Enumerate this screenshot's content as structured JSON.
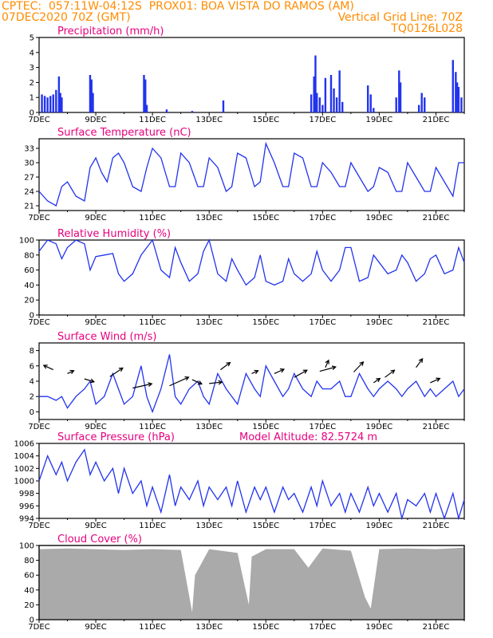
{
  "header": {
    "line1_left": "CPTEC:  057:11W-04:12S  PROX01: BOA VISTA DO RAMOS (AM)",
    "line2_left": "07DEC2020 70Z (GMT)",
    "line2_right": "Vertical Grid Line: 70Z",
    "line3_right": "TQ0126L028"
  },
  "colors": {
    "header": "#ff8c00",
    "title": "#e6007e",
    "line": "#2233ee",
    "cloud": "#aaaaaa"
  },
  "x_axis": {
    "labels": [
      "7DEC",
      "9DEC",
      "11DEC",
      "13DEC",
      "15DEC",
      "17DEC",
      "19DEC",
      "21DEC"
    ],
    "start_day": 7,
    "end_day": 22
  },
  "chart_data": [
    {
      "type": "bar",
      "title": "Precipitation (mm/h)",
      "ylim": [
        0,
        5
      ],
      "yticks": [
        "0",
        "1",
        "2",
        "3",
        "4",
        "5"
      ],
      "x": [
        7.1,
        7.2,
        7.3,
        7.4,
        7.5,
        7.6,
        7.7,
        7.75,
        7.8,
        8.8,
        8.85,
        8.9,
        10.7,
        10.75,
        10.8,
        11.5,
        12.4,
        13.5,
        16.6,
        16.7,
        16.75,
        16.8,
        16.9,
        17.0,
        17.1,
        17.3,
        17.4,
        17.5,
        17.6,
        17.7,
        18.6,
        18.7,
        18.8,
        19.6,
        19.7,
        19.75,
        20.4,
        20.5,
        20.6,
        21.6,
        21.7,
        21.75,
        21.8,
        21.9
      ],
      "values": [
        1.2,
        1.1,
        1.0,
        1.1,
        1.2,
        1.5,
        2.4,
        1.3,
        1.0,
        2.5,
        2.2,
        1.3,
        2.5,
        2.2,
        0.5,
        0.2,
        0.1,
        0.8,
        1.2,
        2.4,
        3.8,
        1.3,
        1.0,
        0.5,
        2.3,
        2.5,
        1.6,
        1.0,
        2.8,
        0.7,
        1.8,
        1.2,
        0.3,
        1.0,
        2.8,
        2.0,
        0.5,
        1.3,
        1.0,
        3.5,
        2.7,
        2.0,
        1.7,
        1.0
      ]
    },
    {
      "type": "line",
      "title": "Surface Temperature (nC)",
      "ylim": [
        20,
        35
      ],
      "yticks": [
        "21",
        "24",
        "27",
        "30",
        "33"
      ],
      "x": [
        7.0,
        7.3,
        7.6,
        7.8,
        8.0,
        8.3,
        8.6,
        8.8,
        9.0,
        9.2,
        9.4,
        9.6,
        9.8,
        10.0,
        10.3,
        10.6,
        10.8,
        11.0,
        11.3,
        11.6,
        11.8,
        12.0,
        12.3,
        12.6,
        12.8,
        13.0,
        13.3,
        13.6,
        13.8,
        14.0,
        14.3,
        14.6,
        14.8,
        15.0,
        15.3,
        15.6,
        15.8,
        16.0,
        16.3,
        16.6,
        16.8,
        17.0,
        17.3,
        17.6,
        17.8,
        18.0,
        18.3,
        18.6,
        18.8,
        19.0,
        19.3,
        19.6,
        19.8,
        20.0,
        20.3,
        20.6,
        20.8,
        21.0,
        21.3,
        21.6,
        21.8,
        22.0
      ],
      "values": [
        24,
        22,
        21,
        25,
        26,
        23,
        22,
        29,
        31,
        28,
        26,
        31,
        32,
        30,
        25,
        24,
        29,
        33,
        31,
        25,
        25,
        32,
        30,
        25,
        25,
        31,
        29,
        24,
        25,
        32,
        31,
        25,
        26,
        34,
        30,
        25,
        25,
        32,
        31,
        25,
        25,
        30,
        28,
        25,
        25,
        30,
        27,
        24,
        25,
        29,
        28,
        24,
        24,
        30,
        27,
        24,
        24,
        29,
        26,
        23,
        30,
        30
      ]
    },
    {
      "type": "line",
      "title": "Relative Humidity (%)",
      "ylim": [
        0,
        100
      ],
      "yticks": [
        "0",
        "20",
        "40",
        "60",
        "80",
        "100"
      ],
      "x": [
        7.0,
        7.3,
        7.6,
        7.8,
        8.0,
        8.3,
        8.6,
        8.8,
        9.0,
        9.3,
        9.6,
        9.8,
        10.0,
        10.3,
        10.6,
        10.8,
        11.0,
        11.3,
        11.6,
        11.8,
        12.0,
        12.3,
        12.6,
        12.8,
        13.0,
        13.3,
        13.6,
        13.8,
        14.0,
        14.3,
        14.6,
        14.8,
        15.0,
        15.3,
        15.6,
        15.8,
        16.0,
        16.3,
        16.6,
        16.8,
        17.0,
        17.3,
        17.6,
        17.8,
        18.0,
        18.3,
        18.6,
        18.8,
        19.0,
        19.3,
        19.6,
        19.8,
        20.0,
        20.3,
        20.6,
        20.8,
        21.0,
        21.3,
        21.6,
        21.8,
        22.0
      ],
      "values": [
        85,
        100,
        95,
        75,
        90,
        100,
        95,
        60,
        78,
        80,
        82,
        55,
        45,
        55,
        80,
        90,
        100,
        60,
        50,
        90,
        70,
        45,
        55,
        85,
        100,
        55,
        45,
        75,
        60,
        40,
        50,
        80,
        45,
        40,
        45,
        75,
        55,
        45,
        55,
        85,
        60,
        45,
        60,
        90,
        90,
        45,
        50,
        80,
        70,
        55,
        60,
        80,
        70,
        45,
        55,
        75,
        80,
        55,
        60,
        90,
        70
      ]
    },
    {
      "type": "line",
      "title": "Surface Wind (m/s)",
      "ylim": [
        -1,
        9
      ],
      "yticks": [
        "0",
        "2",
        "4",
        "6",
        "8"
      ],
      "x": [
        7.0,
        7.3,
        7.6,
        7.8,
        8.0,
        8.3,
        8.6,
        8.8,
        9.0,
        9.3,
        9.6,
        9.8,
        10.0,
        10.3,
        10.6,
        10.8,
        11.0,
        11.3,
        11.6,
        11.8,
        12.0,
        12.3,
        12.6,
        12.8,
        13.0,
        13.3,
        13.6,
        13.8,
        14.0,
        14.3,
        14.6,
        14.8,
        15.0,
        15.3,
        15.6,
        15.8,
        16.0,
        16.3,
        16.6,
        16.8,
        17.0,
        17.3,
        17.6,
        17.8,
        18.0,
        18.3,
        18.6,
        18.8,
        19.0,
        19.3,
        19.6,
        19.8,
        20.0,
        20.3,
        20.6,
        20.8,
        21.0,
        21.3,
        21.6,
        21.8,
        22.0
      ],
      "values": [
        2,
        2,
        1.5,
        2,
        0.5,
        2,
        3,
        4,
        1,
        2,
        5,
        3,
        1,
        2,
        6,
        2,
        0,
        3,
        7.5,
        2,
        1,
        3,
        4,
        2,
        1,
        5,
        3,
        2,
        1,
        5,
        3,
        2,
        6,
        4,
        2,
        3,
        5,
        3,
        2,
        4,
        3,
        3,
        4,
        2,
        2,
        5,
        3,
        2,
        3,
        4,
        3,
        2,
        3,
        4,
        2,
        3,
        2,
        3,
        4,
        2,
        3
      ]
    },
    {
      "type": "line",
      "title": "Surface Pressure (hPa)",
      "annotation": "Model Altitude: 82.5724 m",
      "ylim": [
        994,
        1006
      ],
      "yticks": [
        "994",
        "996",
        "998",
        "1000",
        "1002",
        "1004",
        "1006"
      ],
      "x": [
        7.0,
        7.3,
        7.6,
        7.8,
        8.0,
        8.3,
        8.6,
        8.8,
        9.0,
        9.3,
        9.6,
        9.8,
        10.0,
        10.3,
        10.6,
        10.8,
        11.0,
        11.3,
        11.6,
        11.8,
        12.0,
        12.3,
        12.6,
        12.8,
        13.0,
        13.3,
        13.6,
        13.8,
        14.0,
        14.3,
        14.6,
        14.8,
        15.0,
        15.3,
        15.6,
        15.8,
        16.0,
        16.3,
        16.6,
        16.8,
        17.0,
        17.3,
        17.6,
        17.8,
        18.0,
        18.3,
        18.6,
        18.8,
        19.0,
        19.3,
        19.6,
        19.8,
        20.0,
        20.3,
        20.6,
        20.8,
        21.0,
        21.3,
        21.6,
        21.8,
        22.0
      ],
      "values": [
        1000,
        1004,
        1001,
        1003,
        1000,
        1003,
        1005,
        1001,
        1003,
        1000,
        1002,
        998,
        1002,
        998,
        1000,
        996,
        999,
        995,
        1001,
        996,
        999,
        997,
        1000,
        996,
        999,
        997,
        999,
        996,
        1000,
        995,
        999,
        997,
        999,
        995,
        999,
        997,
        998,
        995,
        999,
        996,
        1000,
        996,
        998,
        995,
        998,
        995,
        999,
        996,
        998,
        995,
        998,
        994,
        997,
        996,
        998,
        995,
        998,
        994,
        998,
        994,
        997
      ]
    },
    {
      "type": "bar",
      "title": "Cloud Cover (%)",
      "ylim": [
        0,
        100
      ],
      "yticks": [
        "0",
        "20",
        "40",
        "60",
        "80",
        "100"
      ],
      "x": [
        7.0,
        8.0,
        9.0,
        10.0,
        11.0,
        12.0,
        12.4,
        12.5,
        13.0,
        14.0,
        14.4,
        14.5,
        15.0,
        16.0,
        16.5,
        17.0,
        18.0,
        18.5,
        18.7,
        19.0,
        20.0,
        21.0,
        22.0
      ],
      "values": [
        95,
        96,
        95,
        94,
        95,
        94,
        10,
        60,
        95,
        90,
        20,
        85,
        95,
        95,
        70,
        96,
        93,
        30,
        15,
        95,
        96,
        95,
        97
      ]
    }
  ]
}
